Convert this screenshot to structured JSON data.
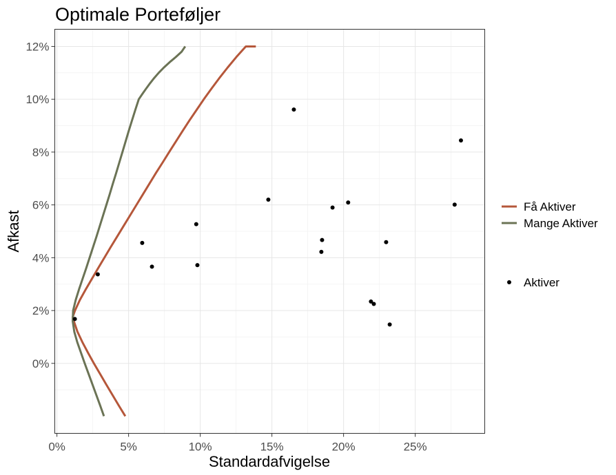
{
  "chart_data": {
    "type": "line",
    "title": "Optimale Porteføljer",
    "xlabel": "Standardafvigelse",
    "ylabel": "Afkast",
    "xlim": [
      -0.0015,
      0.2985
    ],
    "ylim": [
      -0.0265,
      0.1265
    ],
    "x_ticks": [
      0,
      0.05,
      0.1,
      0.15,
      0.2,
      0.25
    ],
    "x_tick_labels": [
      "0%",
      "5%",
      "10%",
      "15%",
      "20%",
      "25%"
    ],
    "y_ticks": [
      0,
      0.02,
      0.04,
      0.06,
      0.08,
      0.1,
      0.12
    ],
    "y_tick_labels": [
      "0%",
      "2%",
      "4%",
      "6%",
      "8%",
      "10%",
      "12%"
    ],
    "grid": true,
    "legend_position": "right",
    "series": [
      {
        "name": "Få Aktiver",
        "type": "line",
        "color": "#b5573a",
        "x": [
          0.0477,
          0.0432,
          0.0388,
          0.0344,
          0.0301,
          0.0258,
          0.0217,
          0.0178,
          0.0143,
          0.0118,
          0.011,
          0.0126,
          0.016,
          0.0201,
          0.0244,
          0.0287,
          0.0331,
          0.0375,
          0.042,
          0.0465,
          0.051,
          0.0555,
          0.06,
          0.0645,
          0.069,
          0.0737,
          0.0783,
          0.083,
          0.0877,
          0.0925,
          0.0975,
          0.1025,
          0.1078,
          0.1133,
          0.1191,
          0.1252,
          0.1318,
          0.1388
        ],
        "y": [
          -0.02,
          -0.016,
          -0.012,
          -0.008,
          -0.004,
          0.0,
          0.004,
          0.008,
          0.012,
          0.016,
          0.0175,
          0.02,
          0.024,
          0.028,
          0.032,
          0.036,
          0.04,
          0.044,
          0.048,
          0.052,
          0.056,
          0.06,
          0.064,
          0.068,
          0.072,
          0.076,
          0.08,
          0.084,
          0.088,
          0.092,
          0.096,
          0.1,
          0.104,
          0.108,
          0.112,
          0.116,
          0.12,
          0.12
        ]
      },
      {
        "name": "Mange Aktiver",
        "type": "line",
        "color": "#6b7355",
        "x": [
          0.0328,
          0.0302,
          0.0275,
          0.0248,
          0.0221,
          0.0194,
          0.0168,
          0.0142,
          0.0121,
          0.011,
          0.0113,
          0.0131,
          0.0154,
          0.0179,
          0.0204,
          0.0228,
          0.0252,
          0.0276,
          0.0299,
          0.0322,
          0.0345,
          0.0368,
          0.039,
          0.0413,
          0.0435,
          0.0457,
          0.0479,
          0.0501,
          0.0524,
          0.0547,
          0.0571,
          0.0596,
          0.0622,
          0.0649,
          0.0678,
          0.071,
          0.0746,
          0.0786,
          0.083,
          0.087,
          0.0895
        ],
        "y": [
          -0.02,
          -0.016,
          -0.012,
          -0.008,
          -0.004,
          0.0,
          0.004,
          0.008,
          0.012,
          0.016,
          0.02,
          0.024,
          0.028,
          0.032,
          0.036,
          0.04,
          0.044,
          0.048,
          0.052,
          0.056,
          0.06,
          0.064,
          0.068,
          0.072,
          0.076,
          0.08,
          0.084,
          0.088,
          0.092,
          0.096,
          0.1,
          0.102,
          0.104,
          0.106,
          0.108,
          0.11,
          0.112,
          0.114,
          0.116,
          0.118,
          0.12
        ]
      },
      {
        "name": "Aktiver",
        "type": "scatter",
        "color": "#000000",
        "x": [
          0.0125,
          0.0285,
          0.0595,
          0.0663,
          0.0972,
          0.098,
          0.1475,
          0.1653,
          0.1845,
          0.185,
          0.1923,
          0.2032,
          0.2191,
          0.2211,
          0.2297,
          0.2322,
          0.2775,
          0.2819
        ],
        "y": [
          0.0168,
          0.0337,
          0.0456,
          0.0366,
          0.0527,
          0.0372,
          0.062,
          0.0961,
          0.0422,
          0.0467,
          0.059,
          0.0609,
          0.0234,
          0.0225,
          0.0459,
          0.0147,
          0.0601,
          0.0844
        ]
      }
    ],
    "legend": [
      {
        "label": "Få Aktiver",
        "color": "#b5573a",
        "kind": "line"
      },
      {
        "label": "Mange Aktiver",
        "color": "#6b7355",
        "kind": "line"
      },
      {
        "label": "Aktiver",
        "color": "#000000",
        "kind": "point"
      }
    ]
  }
}
